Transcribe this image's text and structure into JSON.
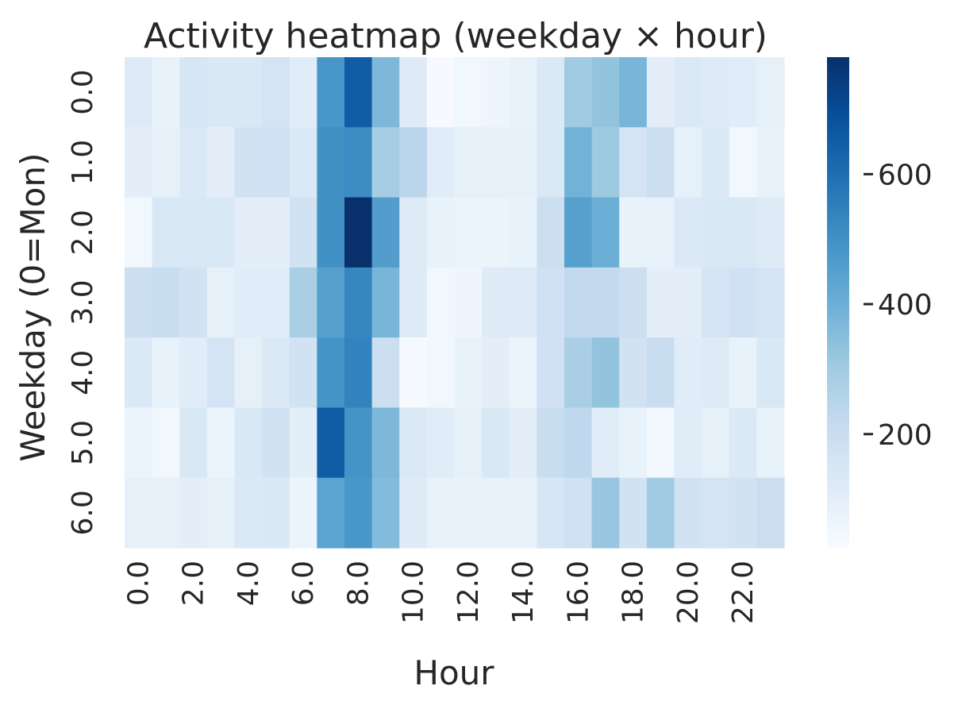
{
  "chart_data": {
    "type": "heatmap",
    "title": "Activity heatmap (weekday × hour)",
    "xlabel": "Hour",
    "ylabel": "Weekday (0=Mon)",
    "x": [
      0,
      1,
      2,
      3,
      4,
      5,
      6,
      7,
      8,
      9,
      10,
      11,
      12,
      13,
      14,
      15,
      16,
      17,
      18,
      19,
      20,
      21,
      22,
      23
    ],
    "y": [
      0,
      1,
      2,
      3,
      4,
      5,
      6
    ],
    "x_tick_labels": [
      "0.0",
      "2.0",
      "4.0",
      "6.0",
      "8.0",
      "10.0",
      "12.0",
      "14.0",
      "16.0",
      "18.0",
      "20.0",
      "22.0"
    ],
    "y_tick_labels": [
      "0.0",
      "1.0",
      "2.0",
      "3.0",
      "4.0",
      "5.0",
      "6.0"
    ],
    "values": [
      [
        120,
        80,
        150,
        140,
        140,
        160,
        110,
        480,
        650,
        370,
        120,
        30,
        50,
        60,
        80,
        130,
        300,
        330,
        380,
        100,
        130,
        120,
        110,
        90
      ],
      [
        100,
        90,
        130,
        100,
        170,
        180,
        130,
        500,
        510,
        290,
        240,
        110,
        90,
        90,
        90,
        130,
        390,
        310,
        160,
        190,
        90,
        130,
        50,
        80
      ],
      [
        50,
        140,
        140,
        140,
        100,
        100,
        170,
        500,
        780,
        460,
        120,
        80,
        70,
        70,
        80,
        190,
        450,
        400,
        80,
        80,
        130,
        140,
        140,
        120
      ],
      [
        190,
        200,
        170,
        90,
        110,
        110,
        280,
        450,
        530,
        380,
        120,
        50,
        60,
        120,
        120,
        180,
        220,
        220,
        190,
        100,
        100,
        160,
        180,
        160
      ],
      [
        130,
        80,
        110,
        160,
        90,
        130,
        170,
        490,
        540,
        190,
        30,
        50,
        80,
        100,
        70,
        180,
        280,
        330,
        170,
        200,
        110,
        120,
        80,
        140
      ],
      [
        70,
        50,
        140,
        70,
        140,
        170,
        100,
        650,
        490,
        370,
        130,
        110,
        90,
        140,
        100,
        200,
        230,
        110,
        80,
        40,
        110,
        90,
        130,
        80
      ],
      [
        90,
        90,
        100,
        90,
        130,
        140,
        70,
        440,
        480,
        360,
        120,
        80,
        80,
        80,
        80,
        150,
        180,
        320,
        170,
        300,
        170,
        160,
        170,
        190
      ]
    ],
    "colorbar": {
      "ticks": [
        200,
        400,
        600
      ],
      "tick_labels": [
        "200",
        "400",
        "600"
      ],
      "min": 25,
      "max": 780
    },
    "colormap": [
      "#f7fbff",
      "#deebf7",
      "#c6dbef",
      "#9ecae1",
      "#6baed6",
      "#4292c6",
      "#2171b5",
      "#08519c",
      "#08306b"
    ],
    "grid": false
  }
}
